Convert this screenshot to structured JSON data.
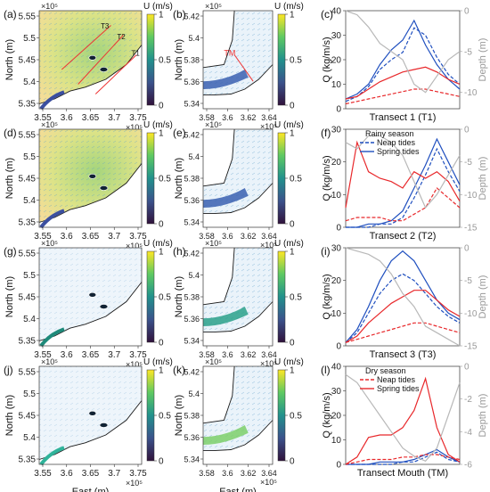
{
  "colorbar": {
    "title": "U (m/s)",
    "ticks": [
      "0",
      "0.5",
      "1"
    ],
    "stops": [
      "#3b0f70",
      "#3b528b",
      "#21918c",
      "#5ec962",
      "#fde725"
    ]
  },
  "maps_wide": {
    "xticks": [
      "3.55",
      "3.6",
      "3.65",
      "3.7",
      "3.75"
    ],
    "yticks": [
      "5.35",
      "5.4",
      "5.45",
      "5.5",
      "5.55"
    ],
    "exp_top": "×10⁵",
    "exp_bottom": "×10⁵",
    "ylabel": "North (m)",
    "xlabel": "East (m)",
    "transect_labels": [
      "T1",
      "T2",
      "T3"
    ]
  },
  "maps_zoom": {
    "xticks": [
      "3.58",
      "3.6",
      "3.62",
      "3.64"
    ],
    "yticks": [
      "5.34",
      "5.36",
      "5.38",
      "5.4",
      "5.42"
    ],
    "exp_top": "×10⁵",
    "exp_bottom": "×10⁵",
    "ylabel": "North (m)",
    "xlabel": "East (m)",
    "tm_label": "TM"
  },
  "panel_letters": [
    "(a)",
    "(b)",
    "(c)",
    "(d)",
    "(e)",
    "(f)",
    "(g)",
    "(h)",
    "(i)",
    "(j)",
    "(k)",
    "(l)"
  ],
  "colors": {
    "neap_spring_blue": "#1f4fbf",
    "rainy_red": "#e8282b",
    "depth_gray": "#b8b8b8",
    "coast": "#1a1a1a"
  },
  "chart_data": [
    {
      "type": "line",
      "panel": "(c)",
      "xlabel": "Transect 1 (T1)",
      "ylabel": "Q (kg/m/s)",
      "ylabel_right": "Depth (m)",
      "ylim": [
        0,
        40
      ],
      "yticks": [
        "0",
        "10",
        "20",
        "30",
        "40"
      ],
      "ylim_right": [
        -12,
        0
      ],
      "yticks_right": [
        "0",
        "-5",
        "-10"
      ],
      "x": [
        0,
        0.1,
        0.2,
        0.3,
        0.4,
        0.5,
        0.6,
        0.7,
        0.8,
        0.9,
        1.0
      ],
      "series": [
        {
          "key": "rainy_spring",
          "values": [
            4,
            6,
            10,
            18,
            24,
            28,
            36,
            26,
            18,
            12,
            8
          ]
        },
        {
          "key": "rainy_neap",
          "values": [
            3,
            5,
            9,
            16,
            20,
            23,
            33,
            30,
            21,
            14,
            10
          ]
        },
        {
          "key": "dry_spring",
          "values": [
            4,
            5,
            8,
            11,
            13,
            15,
            16,
            17,
            15,
            12,
            10
          ]
        },
        {
          "key": "dry_neap",
          "values": [
            2,
            3,
            4,
            5,
            6,
            7,
            8,
            8,
            7,
            6,
            5
          ]
        },
        {
          "key": "depth",
          "axis": "right",
          "values": [
            0,
            -0.5,
            -2,
            -4,
            -5,
            -6,
            -9,
            -10,
            -8,
            -6,
            -5
          ]
        }
      ]
    },
    {
      "type": "line",
      "panel": "(f)",
      "xlabel": "Transect 2 (T2)",
      "ylabel": "Q (kg/m/s)",
      "ylabel_right": "Depth (m)",
      "ylim": [
        0,
        30
      ],
      "yticks": [
        "0",
        "10",
        "20",
        "30"
      ],
      "ylim_right": [
        -15,
        0
      ],
      "yticks_right": [
        "0",
        "-5",
        "-10",
        "-15"
      ],
      "legend_title": "Rainy season",
      "legend": [
        {
          "key": "neap",
          "label": "Neap tides"
        },
        {
          "key": "spring",
          "label": "Spring tides"
        }
      ],
      "x": [
        0,
        0.1,
        0.2,
        0.3,
        0.4,
        0.5,
        0.6,
        0.7,
        0.8,
        0.9,
        1.0
      ],
      "series": [
        {
          "key": "rainy_spring",
          "values": [
            0,
            0,
            1,
            1,
            2,
            5,
            12,
            19,
            27,
            20,
            13
          ]
        },
        {
          "key": "rainy_neap",
          "values": [
            0,
            0,
            0,
            1,
            1,
            3,
            9,
            16,
            24,
            17,
            11
          ]
        },
        {
          "key": "dry_spring",
          "values": [
            6,
            26,
            17,
            15,
            14,
            12,
            17,
            15,
            17,
            14,
            8
          ]
        },
        {
          "key": "dry_neap",
          "values": [
            2,
            3,
            3,
            3,
            2,
            2,
            4,
            6,
            12,
            9,
            6
          ]
        },
        {
          "key": "depth",
          "axis": "right",
          "values": [
            -2,
            -3,
            -1,
            -1,
            -2,
            -4,
            -8,
            -12,
            -10,
            -7,
            -4
          ]
        }
      ]
    },
    {
      "type": "line",
      "panel": "(i)",
      "xlabel": "Transect 3 (T3)",
      "ylabel": "Q (kg/m/s)",
      "ylabel_right": "Depth (m)",
      "ylim": [
        0,
        30
      ],
      "yticks": [
        "0",
        "10",
        "20",
        "30"
      ],
      "ylim_right": [
        -15,
        0
      ],
      "yticks_right": [
        "0",
        "-5",
        "-10",
        "-15"
      ],
      "x": [
        0,
        0.1,
        0.2,
        0.3,
        0.4,
        0.5,
        0.6,
        0.7,
        0.8,
        0.9,
        1.0
      ],
      "series": [
        {
          "key": "rainy_spring",
          "values": [
            1,
            5,
            12,
            20,
            26,
            29,
            26,
            20,
            14,
            10,
            8
          ]
        },
        {
          "key": "rainy_neap",
          "values": [
            1,
            4,
            10,
            16,
            20,
            22,
            20,
            16,
            12,
            9,
            7
          ]
        },
        {
          "key": "dry_spring",
          "values": [
            1,
            3,
            7,
            10,
            13,
            15,
            17,
            17,
            14,
            11,
            9
          ]
        },
        {
          "key": "dry_neap",
          "values": [
            1,
            2,
            3,
            4,
            5,
            6,
            7,
            7,
            6,
            5,
            4
          ]
        },
        {
          "key": "depth",
          "axis": "right",
          "values": [
            0,
            -0.5,
            -1,
            -2,
            -4,
            -7,
            -9,
            -12,
            -13,
            -14,
            -15
          ]
        }
      ]
    },
    {
      "type": "line",
      "panel": "(l)",
      "xlabel": "Transect Mouth (TM)",
      "ylabel": "Q (kg/m/s)",
      "ylabel_right": "Depth (m)",
      "ylim": [
        0,
        40
      ],
      "yticks": [
        "0",
        "10",
        "20",
        "30",
        "40"
      ],
      "ylim_right": [
        -6,
        0
      ],
      "yticks_right": [
        "0",
        "-2",
        "-4",
        "-6"
      ],
      "legend_title": "Dry season",
      "legend": [
        {
          "key": "neap",
          "label": "Neap tides"
        },
        {
          "key": "spring",
          "label": "Spring tides"
        }
      ],
      "x": [
        0,
        0.1,
        0.2,
        0.3,
        0.4,
        0.5,
        0.6,
        0.7,
        0.8,
        0.9,
        1.0
      ],
      "series": [
        {
          "key": "rainy_spring",
          "values": [
            0,
            0,
            0,
            1,
            1,
            1,
            2,
            4,
            6,
            3,
            1
          ]
        },
        {
          "key": "rainy_neap",
          "values": [
            0,
            0,
            0,
            0,
            0,
            1,
            1,
            3,
            5,
            2,
            1
          ]
        },
        {
          "key": "dry_spring",
          "values": [
            0,
            3,
            11,
            12,
            12,
            15,
            22,
            35,
            15,
            4,
            1
          ]
        },
        {
          "key": "dry_neap",
          "values": [
            0,
            1,
            2,
            2,
            2,
            3,
            3,
            4,
            4,
            3,
            2
          ]
        },
        {
          "key": "depth",
          "axis": "right",
          "values": [
            -0.5,
            -1,
            -2,
            -3,
            -4,
            -5,
            -5.5,
            -5.8,
            -5,
            -3,
            -1
          ]
        }
      ]
    }
  ]
}
